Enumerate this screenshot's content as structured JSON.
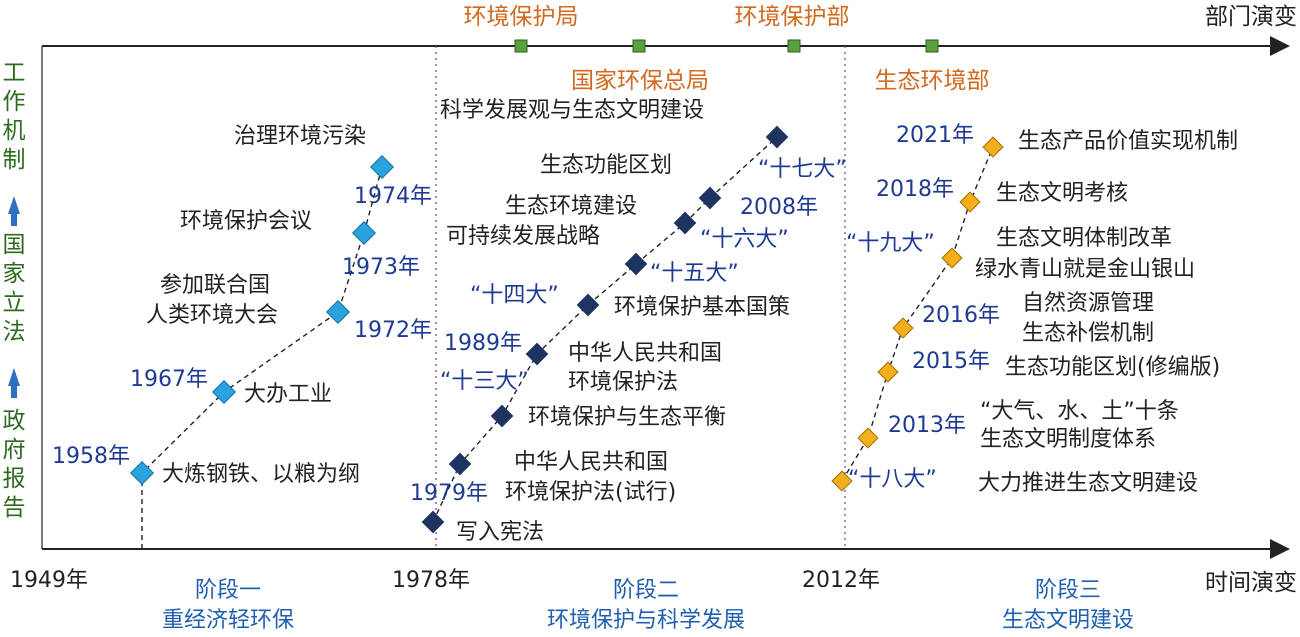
{
  "axes": {
    "top_label": "部门演变",
    "bottom_label": "时间演变",
    "vertical_labels": [
      {
        "text": "工作机制"
      },
      {
        "text": "国家立法"
      },
      {
        "text": "政府报告"
      }
    ],
    "year_marks": [
      {
        "label": "1949年"
      },
      {
        "label": "1978年"
      },
      {
        "label": "2012年"
      }
    ]
  },
  "stages": [
    {
      "title": "阶段一",
      "subtitle": "重经济轻环保"
    },
    {
      "title": "阶段二",
      "subtitle": "环境保护与科学发展"
    },
    {
      "title": "阶段三",
      "subtitle": "生态文明建设"
    }
  ],
  "departments": [
    {
      "label": "环境保护局"
    },
    {
      "label": "国家环保总局"
    },
    {
      "label": "环境保护部"
    },
    {
      "label": "生态环境部"
    }
  ],
  "stage1_events": [
    {
      "year": "1958年",
      "label": "大炼钢铁、以粮为纲"
    },
    {
      "year": "1967年",
      "label": "大办工业"
    },
    {
      "year": "1972年",
      "label_lines": [
        "参加联合国",
        "人类环境大会"
      ]
    },
    {
      "year": "1973年",
      "label": "环境保护会议"
    },
    {
      "year": "1974年",
      "label": "治理环境污染"
    }
  ],
  "stage2_events": [
    {
      "label": "写入宪法"
    },
    {
      "year": "1979年",
      "label_lines": [
        "中华人民共和国",
        "环境保护法(试行)"
      ]
    },
    {
      "label": "环境保护与生态平衡"
    },
    {
      "year": "1989年",
      "year2": "“十三大”",
      "label_lines": [
        "中华人民共和国",
        "环境保护法"
      ]
    },
    {
      "year": "“十四大”",
      "label": "环境保护基本国策"
    },
    {
      "year": "“十五大”",
      "label": "可持续发展战略"
    },
    {
      "year": "“十六大”",
      "label": "生态环境建设"
    },
    {
      "year": "2008年",
      "label": "生态功能区划"
    },
    {
      "year": "“十七大”",
      "label": "科学发展观与生态文明建设"
    }
  ],
  "stage3_events": [
    {
      "year": "“十八大”",
      "label": "大力推进生态文明建设"
    },
    {
      "year": "2013年",
      "label_lines": [
        "“大气、水、土”十条",
        "生态文明制度体系"
      ]
    },
    {
      "year": "2015年",
      "label": "生态功能区划(修编版)"
    },
    {
      "year": "2016年",
      "label_lines": [
        "自然资源管理",
        "生态补偿机制"
      ]
    },
    {
      "year": "“十九大”",
      "label_lines": [
        "生态文明体制改革",
        "绿水青山就是金山银山"
      ]
    },
    {
      "year": "2018年",
      "label": "生态文明考核"
    },
    {
      "year": "2021年",
      "label": "生态产品价值实现机制"
    }
  ],
  "colors": {
    "axis": "#222222",
    "year_text": "#1f3a93",
    "stage_text": "#1f5fb0",
    "department_text": "#d2691e",
    "vertical_text": "#2e6b1f",
    "vertical_arrow": "#2f6fc0",
    "stage1_marker": "#29a3e0",
    "stage2_marker": "#1d3461",
    "stage3_marker": "#f2ae1c",
    "dept_marker": "#5aa13d",
    "divider": "#7b4fa0"
  }
}
